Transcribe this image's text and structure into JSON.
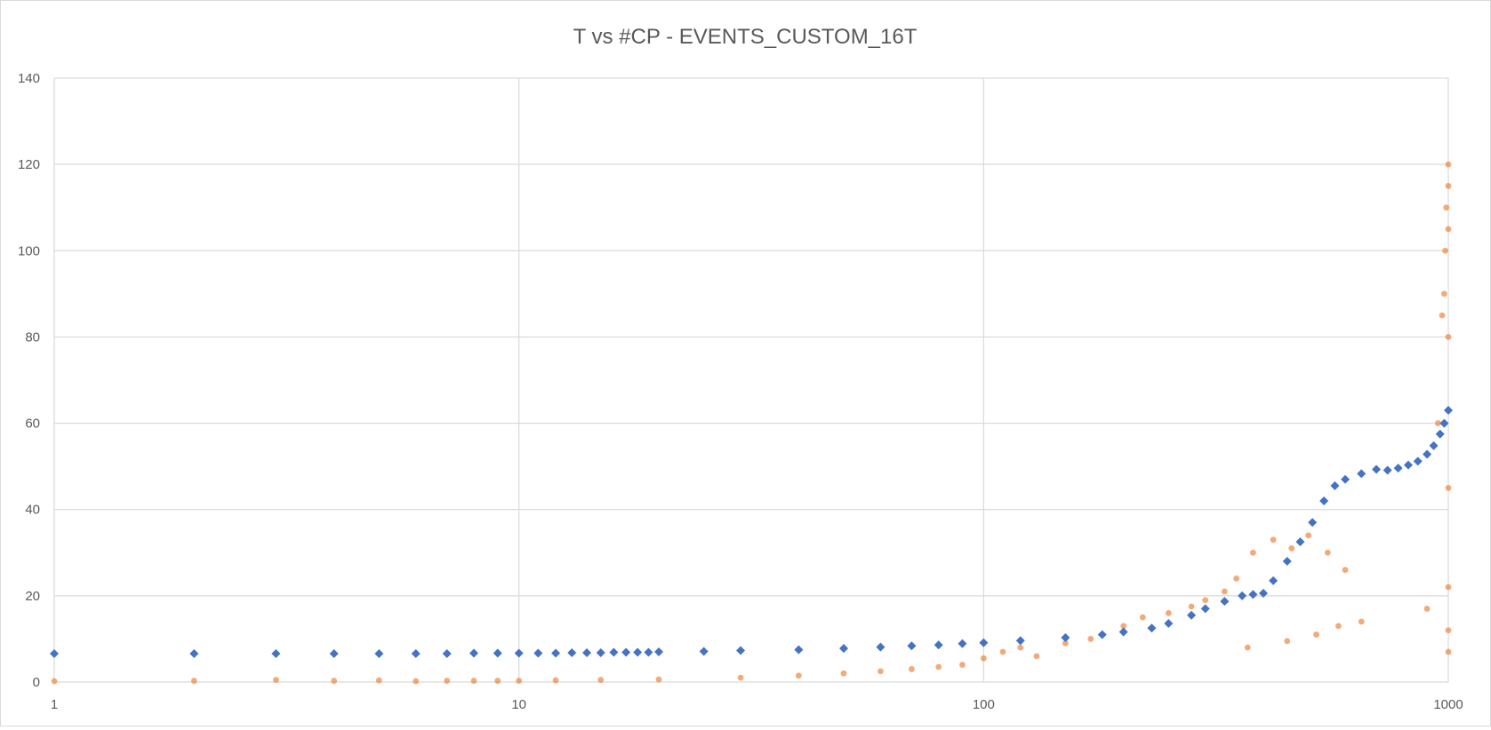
{
  "chart_data": {
    "type": "scatter",
    "title": "T vs #CP - EVENTS_CUSTOM_16T",
    "xlabel": "",
    "ylabel": "",
    "x_scale": "log",
    "xlim": [
      1,
      1000
    ],
    "ylim": [
      0,
      140
    ],
    "x_ticks": [
      1,
      10,
      100,
      1000
    ],
    "y_ticks": [
      0,
      20,
      40,
      60,
      80,
      100,
      120,
      140
    ],
    "x_tick_labels": [
      "1",
      "10",
      "100",
      "1000"
    ],
    "y_tick_labels": [
      "0",
      "20",
      "40",
      "60",
      "80",
      "100",
      "120",
      "140"
    ],
    "grid": true,
    "legend": "none",
    "series": [
      {
        "marker": "diamond",
        "color": "#4472c4",
        "points": [
          [
            1,
            6.6
          ],
          [
            2,
            6.6
          ],
          [
            3,
            6.6
          ],
          [
            4,
            6.6
          ],
          [
            5,
            6.6
          ],
          [
            6,
            6.6
          ],
          [
            7,
            6.6
          ],
          [
            8,
            6.7
          ],
          [
            9,
            6.7
          ],
          [
            10,
            6.7
          ],
          [
            11,
            6.7
          ],
          [
            12,
            6.7
          ],
          [
            13,
            6.8
          ],
          [
            14,
            6.8
          ],
          [
            15,
            6.8
          ],
          [
            16,
            6.9
          ],
          [
            17,
            6.9
          ],
          [
            18,
            6.9
          ],
          [
            19,
            6.9
          ],
          [
            20,
            7.0
          ],
          [
            25,
            7.1
          ],
          [
            30,
            7.3
          ],
          [
            40,
            7.5
          ],
          [
            50,
            7.8
          ],
          [
            60,
            8.1
          ],
          [
            70,
            8.4
          ],
          [
            80,
            8.6
          ],
          [
            90,
            8.9
          ],
          [
            100,
            9.1
          ],
          [
            120,
            9.6
          ],
          [
            150,
            10.3
          ],
          [
            180,
            11.0
          ],
          [
            200,
            11.6
          ],
          [
            230,
            12.5
          ],
          [
            250,
            13.6
          ],
          [
            280,
            15.5
          ],
          [
            300,
            17.0
          ],
          [
            330,
            18.7
          ],
          [
            360,
            20.0
          ],
          [
            380,
            20.3
          ],
          [
            400,
            20.6
          ],
          [
            420,
            23.5
          ],
          [
            450,
            28.0
          ],
          [
            480,
            32.5
          ],
          [
            510,
            37.0
          ],
          [
            540,
            42.0
          ],
          [
            570,
            45.5
          ],
          [
            600,
            47.0
          ],
          [
            650,
            48.3
          ],
          [
            700,
            49.3
          ],
          [
            740,
            49.1
          ],
          [
            780,
            49.6
          ],
          [
            820,
            50.3
          ],
          [
            860,
            51.2
          ],
          [
            900,
            52.8
          ],
          [
            930,
            54.8
          ],
          [
            960,
            57.5
          ],
          [
            980,
            60.0
          ],
          [
            1000,
            63.0
          ]
        ]
      },
      {
        "marker": "circle",
        "color": "#ed7d31",
        "points": [
          [
            1,
            0.2
          ],
          [
            2,
            0.3
          ],
          [
            3,
            0.5
          ],
          [
            4,
            0.3
          ],
          [
            5,
            0.4
          ],
          [
            6,
            0.2
          ],
          [
            7,
            0.3
          ],
          [
            8,
            0.3
          ],
          [
            9,
            0.3
          ],
          [
            10,
            0.3
          ],
          [
            12,
            0.4
          ],
          [
            15,
            0.5
          ],
          [
            20,
            0.6
          ],
          [
            30,
            1.0
          ],
          [
            40,
            1.5
          ],
          [
            50,
            2.0
          ],
          [
            60,
            2.5
          ],
          [
            70,
            3.0
          ],
          [
            80,
            3.5
          ],
          [
            90,
            4.0
          ],
          [
            100,
            5.5
          ],
          [
            110,
            7.0
          ],
          [
            120,
            8.0
          ],
          [
            130,
            6.0
          ],
          [
            150,
            9.0
          ],
          [
            170,
            10.0
          ],
          [
            200,
            13.0
          ],
          [
            220,
            15.0
          ],
          [
            250,
            16.0
          ],
          [
            280,
            17.5
          ],
          [
            300,
            19.0
          ],
          [
            330,
            21.0
          ],
          [
            350,
            24.0
          ],
          [
            380,
            30.0
          ],
          [
            420,
            33.0
          ],
          [
            460,
            31.0
          ],
          [
            500,
            34.0
          ],
          [
            550,
            30.0
          ],
          [
            600,
            26.0
          ],
          [
            370,
            8.0
          ],
          [
            450,
            9.5
          ],
          [
            520,
            11.0
          ],
          [
            580,
            13.0
          ],
          [
            650,
            14.0
          ],
          [
            900,
            17.0
          ],
          [
            950,
            60.0
          ],
          [
            970,
            85.0
          ],
          [
            980,
            90.0
          ],
          [
            985,
            100.0
          ],
          [
            990,
            110.0
          ],
          [
            1000,
            120.0
          ],
          [
            1000,
            115.0
          ],
          [
            1000,
            105.0
          ],
          [
            1000,
            80.0
          ],
          [
            1000,
            45.0
          ],
          [
            1000,
            22.0
          ],
          [
            1000,
            12.0
          ],
          [
            1000,
            7.0
          ]
        ]
      }
    ]
  }
}
